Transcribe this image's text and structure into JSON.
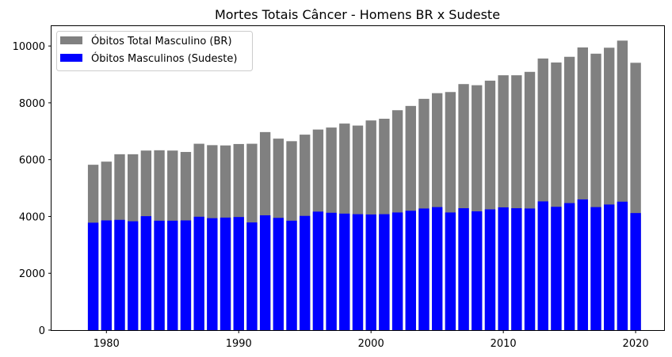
{
  "chart_data": {
    "type": "bar",
    "stacking": "overlay",
    "title": "Mortes Totais Câncer - Homens BR x Sudeste",
    "xlabel": "",
    "ylabel": "",
    "x": [
      1979,
      1980,
      1981,
      1982,
      1983,
      1984,
      1985,
      1986,
      1987,
      1988,
      1989,
      1990,
      1991,
      1992,
      1993,
      1994,
      1995,
      1996,
      1997,
      1998,
      1999,
      2000,
      2001,
      2002,
      2003,
      2004,
      2005,
      2006,
      2007,
      2008,
      2009,
      2010,
      2011,
      2012,
      2013,
      2014,
      2015,
      2016,
      2017,
      2018,
      2019,
      2020
    ],
    "series": [
      {
        "name": "Óbitos Total Masculino (BR)",
        "color": "#808080",
        "values": [
          5820,
          5930,
          6190,
          6190,
          6320,
          6330,
          6320,
          6270,
          6560,
          6510,
          6500,
          6550,
          6560,
          6970,
          6740,
          6650,
          6880,
          7060,
          7130,
          7270,
          7200,
          7380,
          7440,
          7740,
          7890,
          8140,
          8340,
          8380,
          8660,
          8620,
          8780,
          8970,
          8970,
          9090,
          9560,
          9420,
          9620,
          9950,
          9730,
          9940,
          10190,
          9410
        ]
      },
      {
        "name": "Óbitos Masculinos (Sudeste)",
        "color": "#0000ff",
        "values": [
          3780,
          3860,
          3880,
          3830,
          4010,
          3850,
          3850,
          3860,
          3990,
          3940,
          3960,
          3980,
          3790,
          4040,
          3950,
          3850,
          4020,
          4170,
          4130,
          4100,
          4080,
          4070,
          4080,
          4140,
          4200,
          4280,
          4330,
          4140,
          4290,
          4180,
          4250,
          4320,
          4290,
          4280,
          4530,
          4340,
          4470,
          4600,
          4330,
          4420,
          4520,
          4120
        ]
      }
    ],
    "xlim": [
      1975.85,
      2022.15
    ],
    "ylim": [
      0,
      10700
    ],
    "xticks": [
      1980,
      1990,
      2000,
      2010,
      2020
    ],
    "yticks": [
      0,
      2000,
      4000,
      6000,
      8000,
      10000
    ],
    "grid": false,
    "legend_position": "upper-left"
  }
}
